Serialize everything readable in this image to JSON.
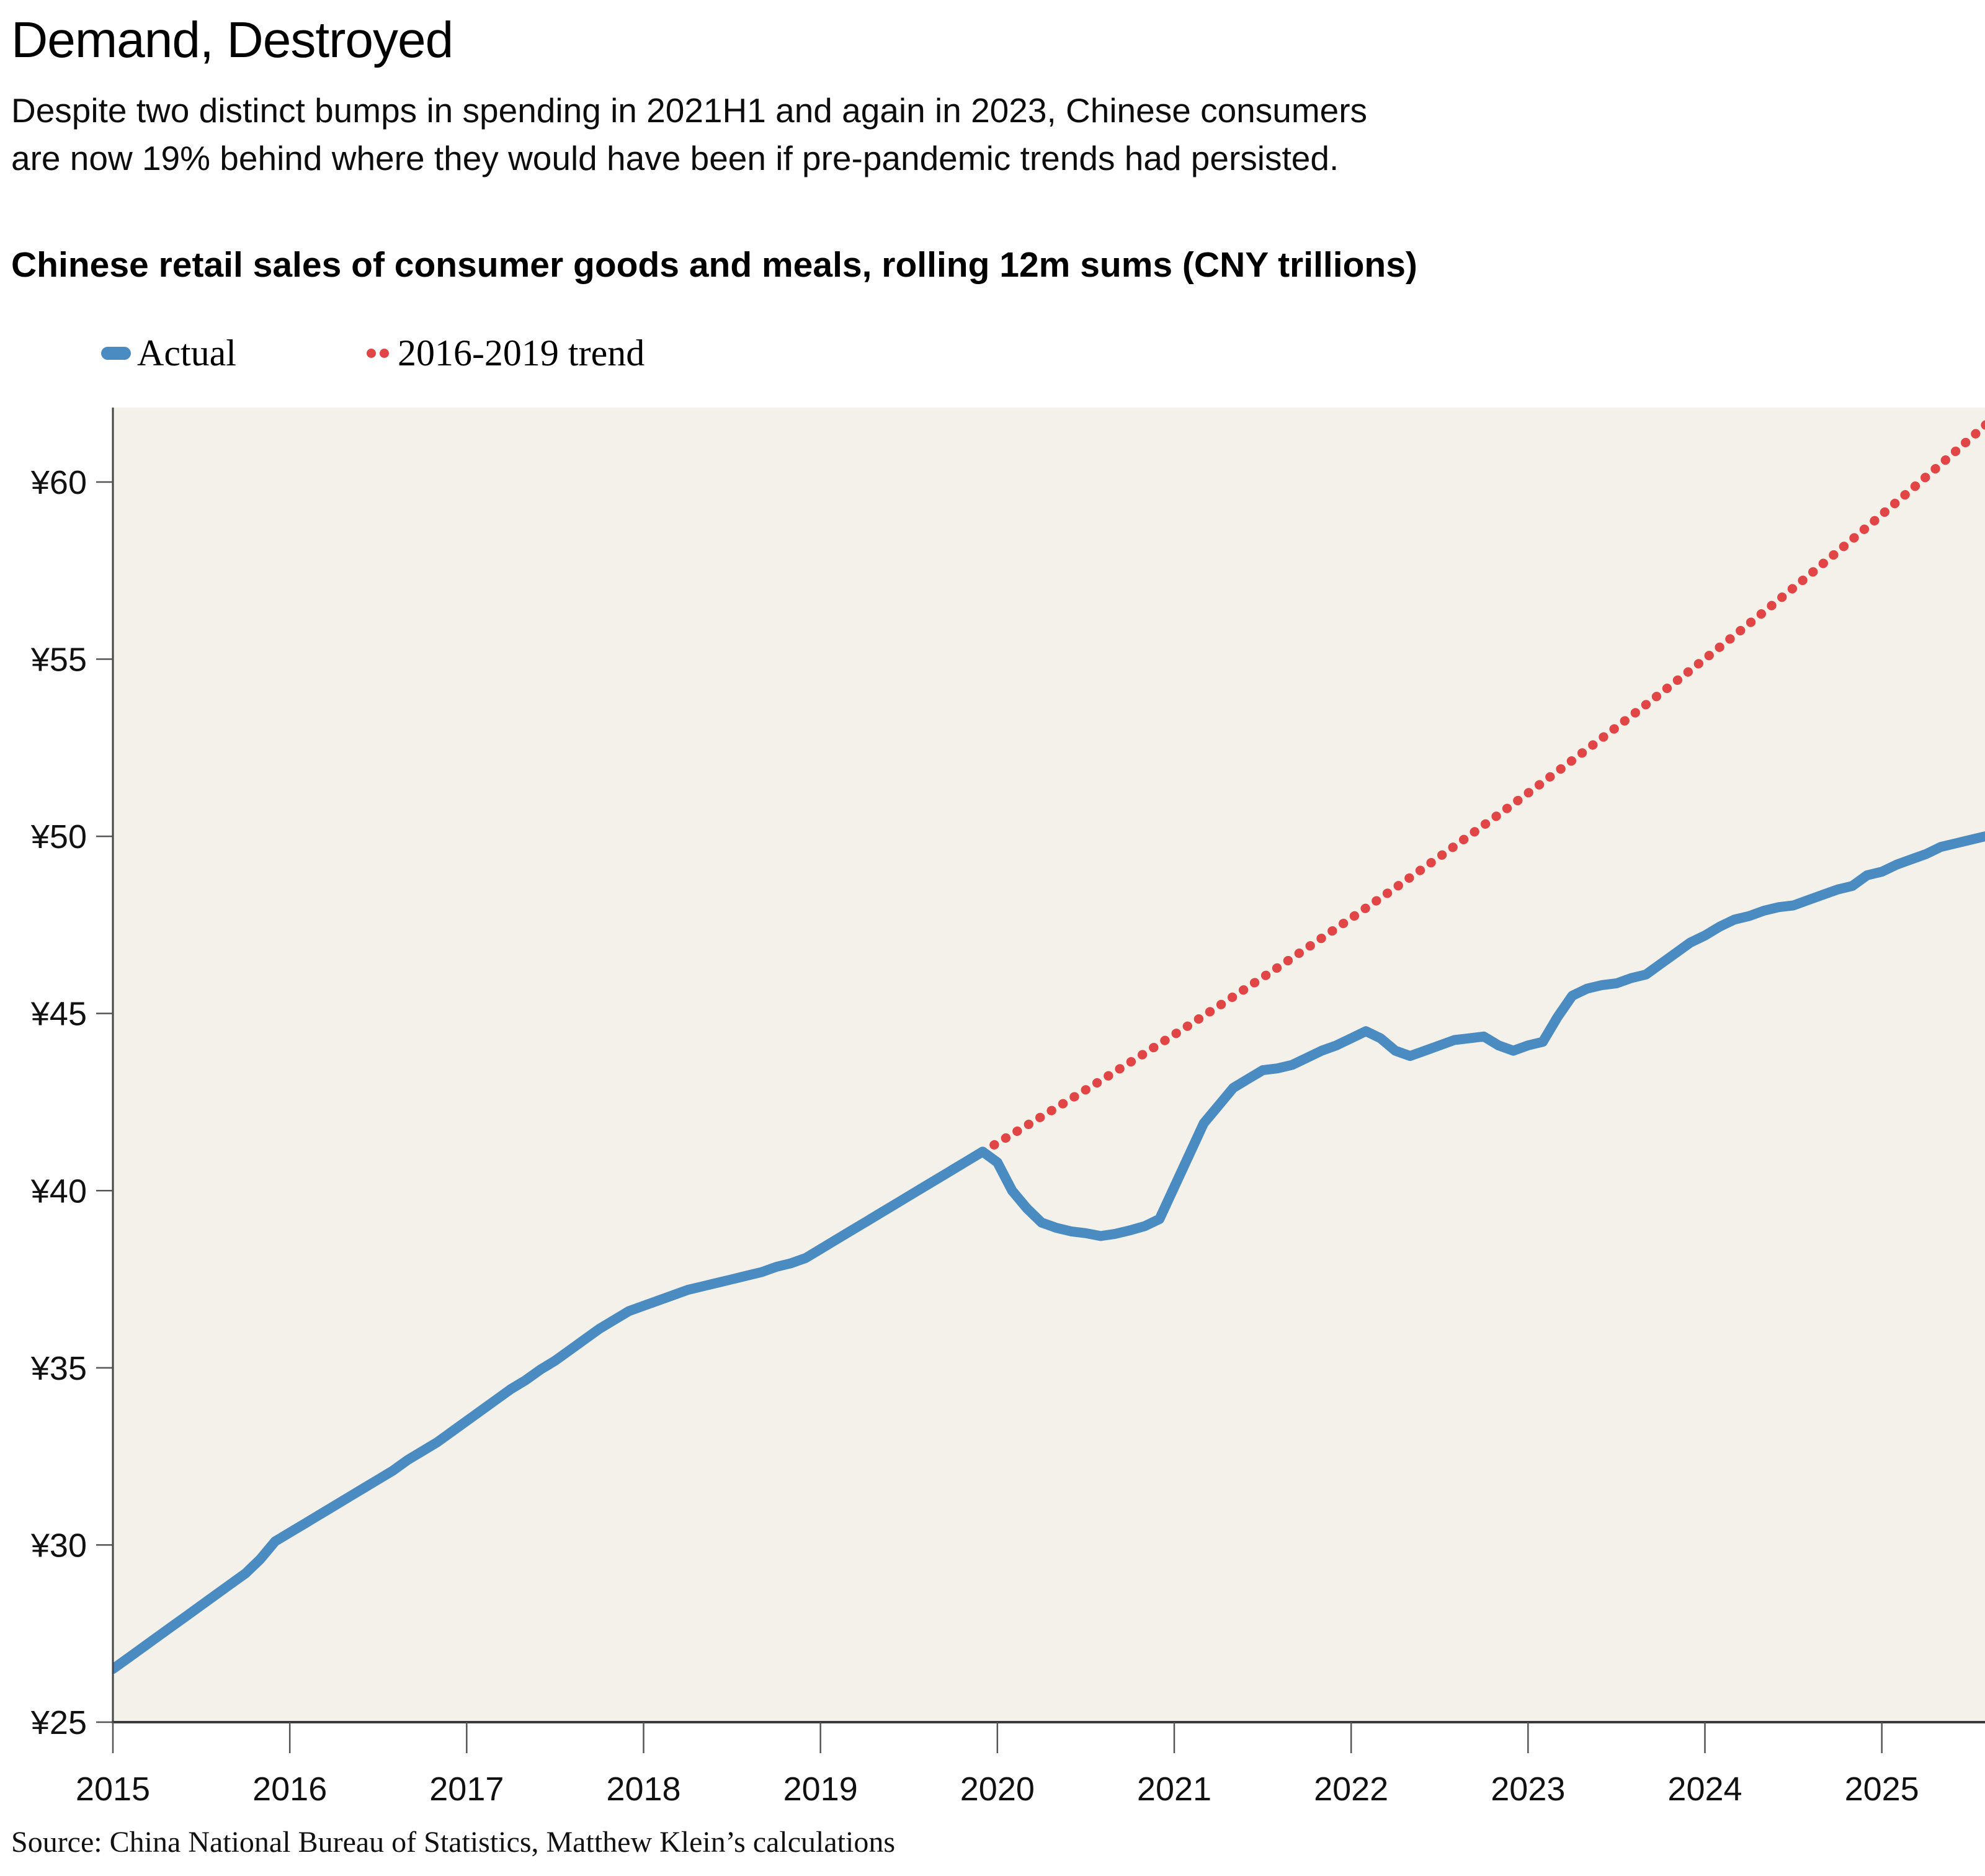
{
  "header": {
    "title": "Demand, Destroyed",
    "subtitle_line1": "Despite two distinct bumps in spending in 2021H1 and again in 2023, Chinese consumers",
    "subtitle_line2": "are now 19% behind where they would have been if pre-pandemic trends had persisted.",
    "chart_label": "Chinese retail sales of consumer goods and meals, rolling 12m sums (CNY trillions)"
  },
  "legend": {
    "actual": {
      "label": "Actual",
      "color": "#4a8bc2",
      "marker": "dash"
    },
    "trend": {
      "label": "2016-2019 trend",
      "color": "#e14545",
      "marker": "dots"
    }
  },
  "source": {
    "text": "Source: China National Bureau of Statistics, Matthew Klein’s calculations"
  },
  "chart_data": {
    "type": "line",
    "title": "Chinese retail sales of consumer goods and meals, rolling 12m sums (CNY trillions)",
    "xlabel": "",
    "ylabel": "CNY trillions (rolling 12-month sum)",
    "plot_bg": "#f4f1ea",
    "axis_color": "#444444",
    "grid": false,
    "legend_position": "top-left",
    "x_domain": [
      2015.0,
      2025.5833
    ],
    "y_domain": [
      25,
      62.1
    ],
    "x_ticks": [
      {
        "t": 2015,
        "label": "2015"
      },
      {
        "t": 2016,
        "label": "2016"
      },
      {
        "t": 2017,
        "label": "2017"
      },
      {
        "t": 2018,
        "label": "2018"
      },
      {
        "t": 2019,
        "label": "2019"
      },
      {
        "t": 2020,
        "label": "2020"
      },
      {
        "t": 2021,
        "label": "2021"
      },
      {
        "t": 2022,
        "label": "2022"
      },
      {
        "t": 2023,
        "label": "2023"
      },
      {
        "t": 2024,
        "label": "2024"
      },
      {
        "t": 2025,
        "label": "2025"
      }
    ],
    "y_ticks": [
      {
        "v": 25,
        "label": "¥25"
      },
      {
        "v": 30,
        "label": "¥30"
      },
      {
        "v": 35,
        "label": "¥35"
      },
      {
        "v": 40,
        "label": "¥40"
      },
      {
        "v": 45,
        "label": "¥45"
      },
      {
        "v": 50,
        "label": "¥50"
      },
      {
        "v": 55,
        "label": "¥55"
      },
      {
        "v": 60,
        "label": "¥60"
      }
    ],
    "series": [
      {
        "name": "Actual",
        "style": "solid",
        "color": "#4a8bc2",
        "stroke_width": 16,
        "start_year": 2015,
        "start_month": 1,
        "monthly_values": [
          26.5,
          26.8,
          27.1,
          27.4,
          27.7,
          28.0,
          28.3,
          28.6,
          28.9,
          29.2,
          29.6,
          30.1,
          30.35,
          30.6,
          30.85,
          31.1,
          31.35,
          31.6,
          31.85,
          32.1,
          32.4,
          32.65,
          32.9,
          33.2,
          33.5,
          33.8,
          34.1,
          34.4,
          34.65,
          34.95,
          35.2,
          35.5,
          35.8,
          36.1,
          36.35,
          36.6,
          36.75,
          36.9,
          37.05,
          37.2,
          37.3,
          37.4,
          37.5,
          37.6,
          37.7,
          37.85,
          37.95,
          38.1,
          38.35,
          38.6,
          38.85,
          39.1,
          39.35,
          39.6,
          39.85,
          40.1,
          40.35,
          40.6,
          40.85,
          41.1,
          40.8,
          40.0,
          39.5,
          39.1,
          38.95,
          38.85,
          38.8,
          38.72,
          38.78,
          38.88,
          39.0,
          39.2,
          40.1,
          41.0,
          41.9,
          42.4,
          42.9,
          43.15,
          43.4,
          43.45,
          43.55,
          43.75,
          43.95,
          44.1,
          44.3,
          44.5,
          44.3,
          43.95,
          43.8,
          43.95,
          44.1,
          44.25,
          44.3,
          44.35,
          44.1,
          43.95,
          44.1,
          44.2,
          44.9,
          45.5,
          45.7,
          45.8,
          45.85,
          46.0,
          46.1,
          46.4,
          46.7,
          47.0,
          47.2,
          47.45,
          47.65,
          47.75,
          47.9,
          48.0,
          48.05,
          48.2,
          48.35,
          48.5,
          48.6,
          48.9,
          49.0,
          49.2,
          49.35,
          49.5,
          49.7,
          49.8,
          49.9,
          50.0
        ]
      },
      {
        "name": "2016-2019 trend",
        "style": "dotted",
        "color": "#e14545",
        "stroke_width": 15,
        "dot_spacing": 21,
        "trend": {
          "start_t": 2019.9167,
          "start_value": 41.1,
          "annual_growth_pct": 7.4,
          "end_t": 2025.64,
          "end_value_approx": 61.6
        }
      }
    ]
  }
}
